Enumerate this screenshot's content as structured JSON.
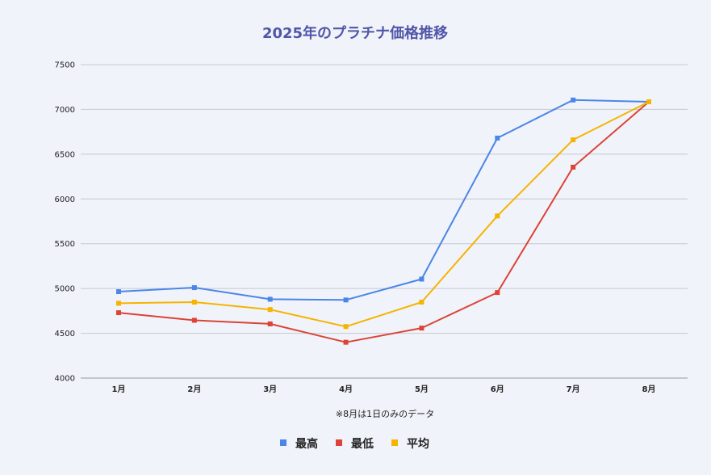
{
  "chart_data": {
    "type": "line",
    "title": "2025年のプラチナ価格推移",
    "xlabel": "",
    "ylabel": "",
    "categories": [
      "1月",
      "2月",
      "3月",
      "4月",
      "5月",
      "6月",
      "7月",
      "8月"
    ],
    "ylim": [
      4000,
      7500
    ],
    "yticks": [
      4000,
      4500,
      5000,
      5500,
      6000,
      6500,
      7000,
      7500
    ],
    "grid": true,
    "legend_position": "bottom",
    "note": "※8月は1日のみのデータ",
    "series": [
      {
        "name": "最高",
        "color": "#4a86e8",
        "values": [
          4965,
          5010,
          4880,
          4872,
          5105,
          6680,
          7105,
          7085
        ]
      },
      {
        "name": "最低",
        "color": "#db4437",
        "values": [
          4730,
          4645,
          4605,
          4400,
          4558,
          4955,
          6355,
          7085
        ]
      },
      {
        "name": "平均",
        "color": "#f4b400",
        "values": [
          4835,
          4848,
          4765,
          4575,
          4848,
          5810,
          6660,
          7085
        ]
      }
    ]
  }
}
